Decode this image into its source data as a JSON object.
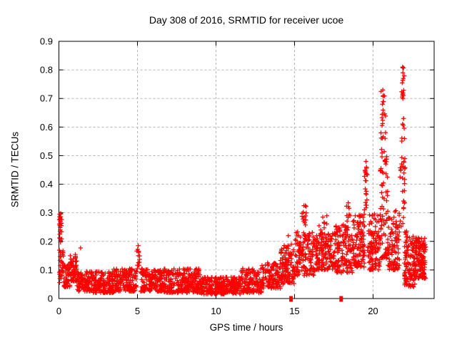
{
  "chart_data": {
    "type": "scatter",
    "title": "Day 308 of 2016, SRMTID for receiver ucoe",
    "xlabel": "GPS time / hours",
    "ylabel": "SRMTID / TECUs",
    "xlim": [
      0,
      23.89
    ],
    "ylim": [
      0,
      0.9
    ],
    "xticks": [
      0,
      5,
      10,
      15,
      20
    ],
    "yticks": [
      0,
      0.1,
      0.2,
      0.3,
      0.4,
      0.5,
      0.6,
      0.7,
      0.8,
      0.9
    ],
    "grid": true,
    "legend": "none",
    "marker": "plus",
    "marker_color": "#ff0000",
    "grid_color": "#b3b3b3",
    "border_color": "#000000",
    "text_color": "#000000",
    "seed": 308,
    "band_format": [
      "x_start_hours",
      "x_end_hours",
      "y_min_tecus",
      "y_max_tecus",
      "point_count",
      "low_bias_exponent"
    ],
    "bands": [
      [
        0.02,
        0.18,
        0.19,
        0.3,
        20,
        1
      ],
      [
        0.0,
        0.3,
        0.055,
        0.17,
        30,
        1.2
      ],
      [
        0.3,
        0.7,
        0.04,
        0.12,
        45,
        1.3
      ],
      [
        0.7,
        1.15,
        0.06,
        0.155,
        60,
        1.2
      ],
      [
        1.15,
        2.1,
        0.025,
        0.095,
        100,
        1.3
      ],
      [
        2.1,
        3.5,
        0.02,
        0.095,
        150,
        1.3
      ],
      [
        3.5,
        4.95,
        0.025,
        0.105,
        160,
        1.35
      ],
      [
        4.95,
        5.2,
        0.1,
        0.185,
        12,
        1
      ],
      [
        5.2,
        6.6,
        0.025,
        0.105,
        150,
        1.35
      ],
      [
        6.6,
        9.0,
        0.02,
        0.105,
        260,
        1.35
      ],
      [
        9.0,
        11.6,
        0.015,
        0.075,
        270,
        1.25
      ],
      [
        11.6,
        12.9,
        0.02,
        0.105,
        130,
        1.3
      ],
      [
        12.9,
        14.1,
        0.035,
        0.125,
        120,
        1.2
      ],
      [
        14.1,
        15.05,
        0.05,
        0.19,
        120,
        1.25
      ],
      [
        15.05,
        16.3,
        0.08,
        0.235,
        140,
        1.2
      ],
      [
        15.45,
        15.85,
        0.24,
        0.325,
        12,
        1
      ],
      [
        16.3,
        17.6,
        0.1,
        0.23,
        150,
        1.2
      ],
      [
        16.5,
        17.2,
        0.22,
        0.29,
        10,
        1
      ],
      [
        17.6,
        18.7,
        0.09,
        0.26,
        130,
        1.2
      ],
      [
        18.3,
        18.55,
        0.26,
        0.335,
        8,
        1
      ],
      [
        18.7,
        19.5,
        0.11,
        0.3,
        110,
        1.25
      ],
      [
        19.45,
        19.65,
        0.31,
        0.485,
        20,
        1
      ],
      [
        19.65,
        20.45,
        0.1,
        0.3,
        110,
        1.35
      ],
      [
        20.45,
        20.95,
        0.14,
        0.55,
        75,
        1.45
      ],
      [
        20.5,
        20.8,
        0.55,
        0.735,
        20,
        1
      ],
      [
        20.95,
        21.7,
        0.1,
        0.31,
        100,
        1.3
      ],
      [
        21.7,
        22.05,
        0.25,
        0.5,
        30,
        1.15
      ],
      [
        21.8,
        22.0,
        0.52,
        0.66,
        7,
        1
      ],
      [
        21.82,
        21.98,
        0.7,
        0.815,
        11,
        1
      ],
      [
        22.0,
        22.7,
        0.04,
        0.24,
        120,
        1.35
      ],
      [
        22.7,
        23.35,
        0.07,
        0.215,
        130,
        1.15
      ]
    ],
    "notable_points": [
      [
        0.05,
        0.295
      ],
      [
        0.07,
        0.285
      ],
      [
        0.09,
        0.27
      ],
      [
        0.06,
        0.255
      ],
      [
        0.08,
        0.24
      ],
      [
        0.05,
        0.225
      ],
      [
        0.07,
        0.21
      ],
      [
        0.1,
        0.198
      ],
      [
        1.38,
        0.177
      ],
      [
        5.05,
        0.185
      ],
      [
        5.08,
        0.165
      ],
      [
        14.6,
        0.22
      ],
      [
        15.6,
        0.325
      ],
      [
        15.75,
        0.3
      ],
      [
        16.8,
        0.285
      ],
      [
        18.42,
        0.335
      ],
      [
        19.55,
        0.48
      ],
      [
        19.58,
        0.46
      ],
      [
        19.52,
        0.44
      ],
      [
        20.62,
        0.73
      ],
      [
        20.65,
        0.71
      ],
      [
        20.6,
        0.68
      ],
      [
        21.88,
        0.81
      ],
      [
        21.9,
        0.79
      ],
      [
        21.92,
        0.77
      ],
      [
        21.86,
        0.755
      ],
      [
        21.9,
        0.7
      ],
      [
        21.95,
        0.63
      ],
      [
        22.0,
        0.56
      ]
    ],
    "on_axis_clusters": [
      [
        14.78,
        0
      ],
      [
        17.97,
        0
      ]
    ]
  }
}
